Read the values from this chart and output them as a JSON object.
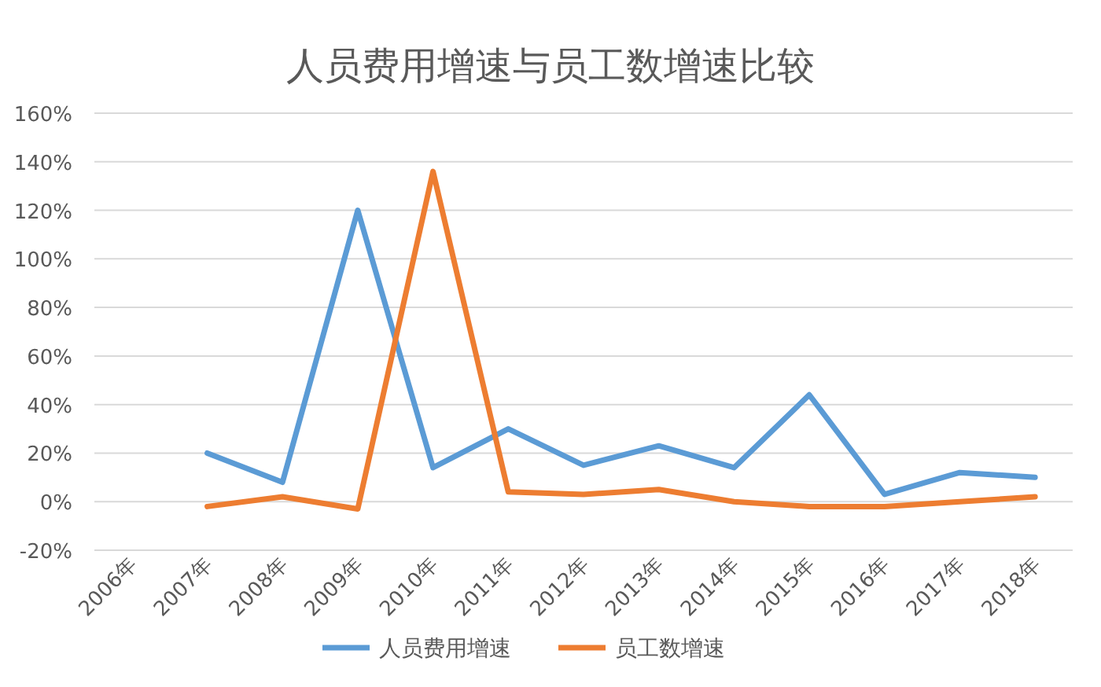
{
  "chart_data": {
    "type": "line",
    "title": "人员费用增速与员工数增速比较",
    "categories": [
      "2006年",
      "2007年",
      "2008年",
      "2009年",
      "2010年",
      "2011年",
      "2012年",
      "2013年",
      "2014年",
      "2015年",
      "2016年",
      "2017年",
      "2018年"
    ],
    "series": [
      {
        "name": "人员费用增速",
        "color": "#5b9bd5",
        "values": [
          null,
          20,
          8,
          120,
          14,
          30,
          15,
          23,
          14,
          44,
          3,
          12,
          10
        ]
      },
      {
        "name": "员工数增速",
        "color": "#ed7d31",
        "values": [
          null,
          -2,
          2,
          -3,
          136,
          4,
          3,
          5,
          0,
          -2,
          -2,
          0,
          2
        ]
      }
    ],
    "ylim": [
      -20,
      160
    ],
    "yticks": [
      {
        "value": -20,
        "label": "-20%"
      },
      {
        "value": 0,
        "label": "0%"
      },
      {
        "value": 20,
        "label": "20%"
      },
      {
        "value": 40,
        "label": "40%"
      },
      {
        "value": 60,
        "label": "60%"
      },
      {
        "value": 80,
        "label": "80%"
      },
      {
        "value": 100,
        "label": "100%"
      },
      {
        "value": 120,
        "label": "120%"
      },
      {
        "value": 140,
        "label": "140%"
      },
      {
        "value": 160,
        "label": "160%"
      }
    ],
    "grid": "y",
    "legend": "bottom",
    "marker": "none",
    "line_style": "solid"
  }
}
